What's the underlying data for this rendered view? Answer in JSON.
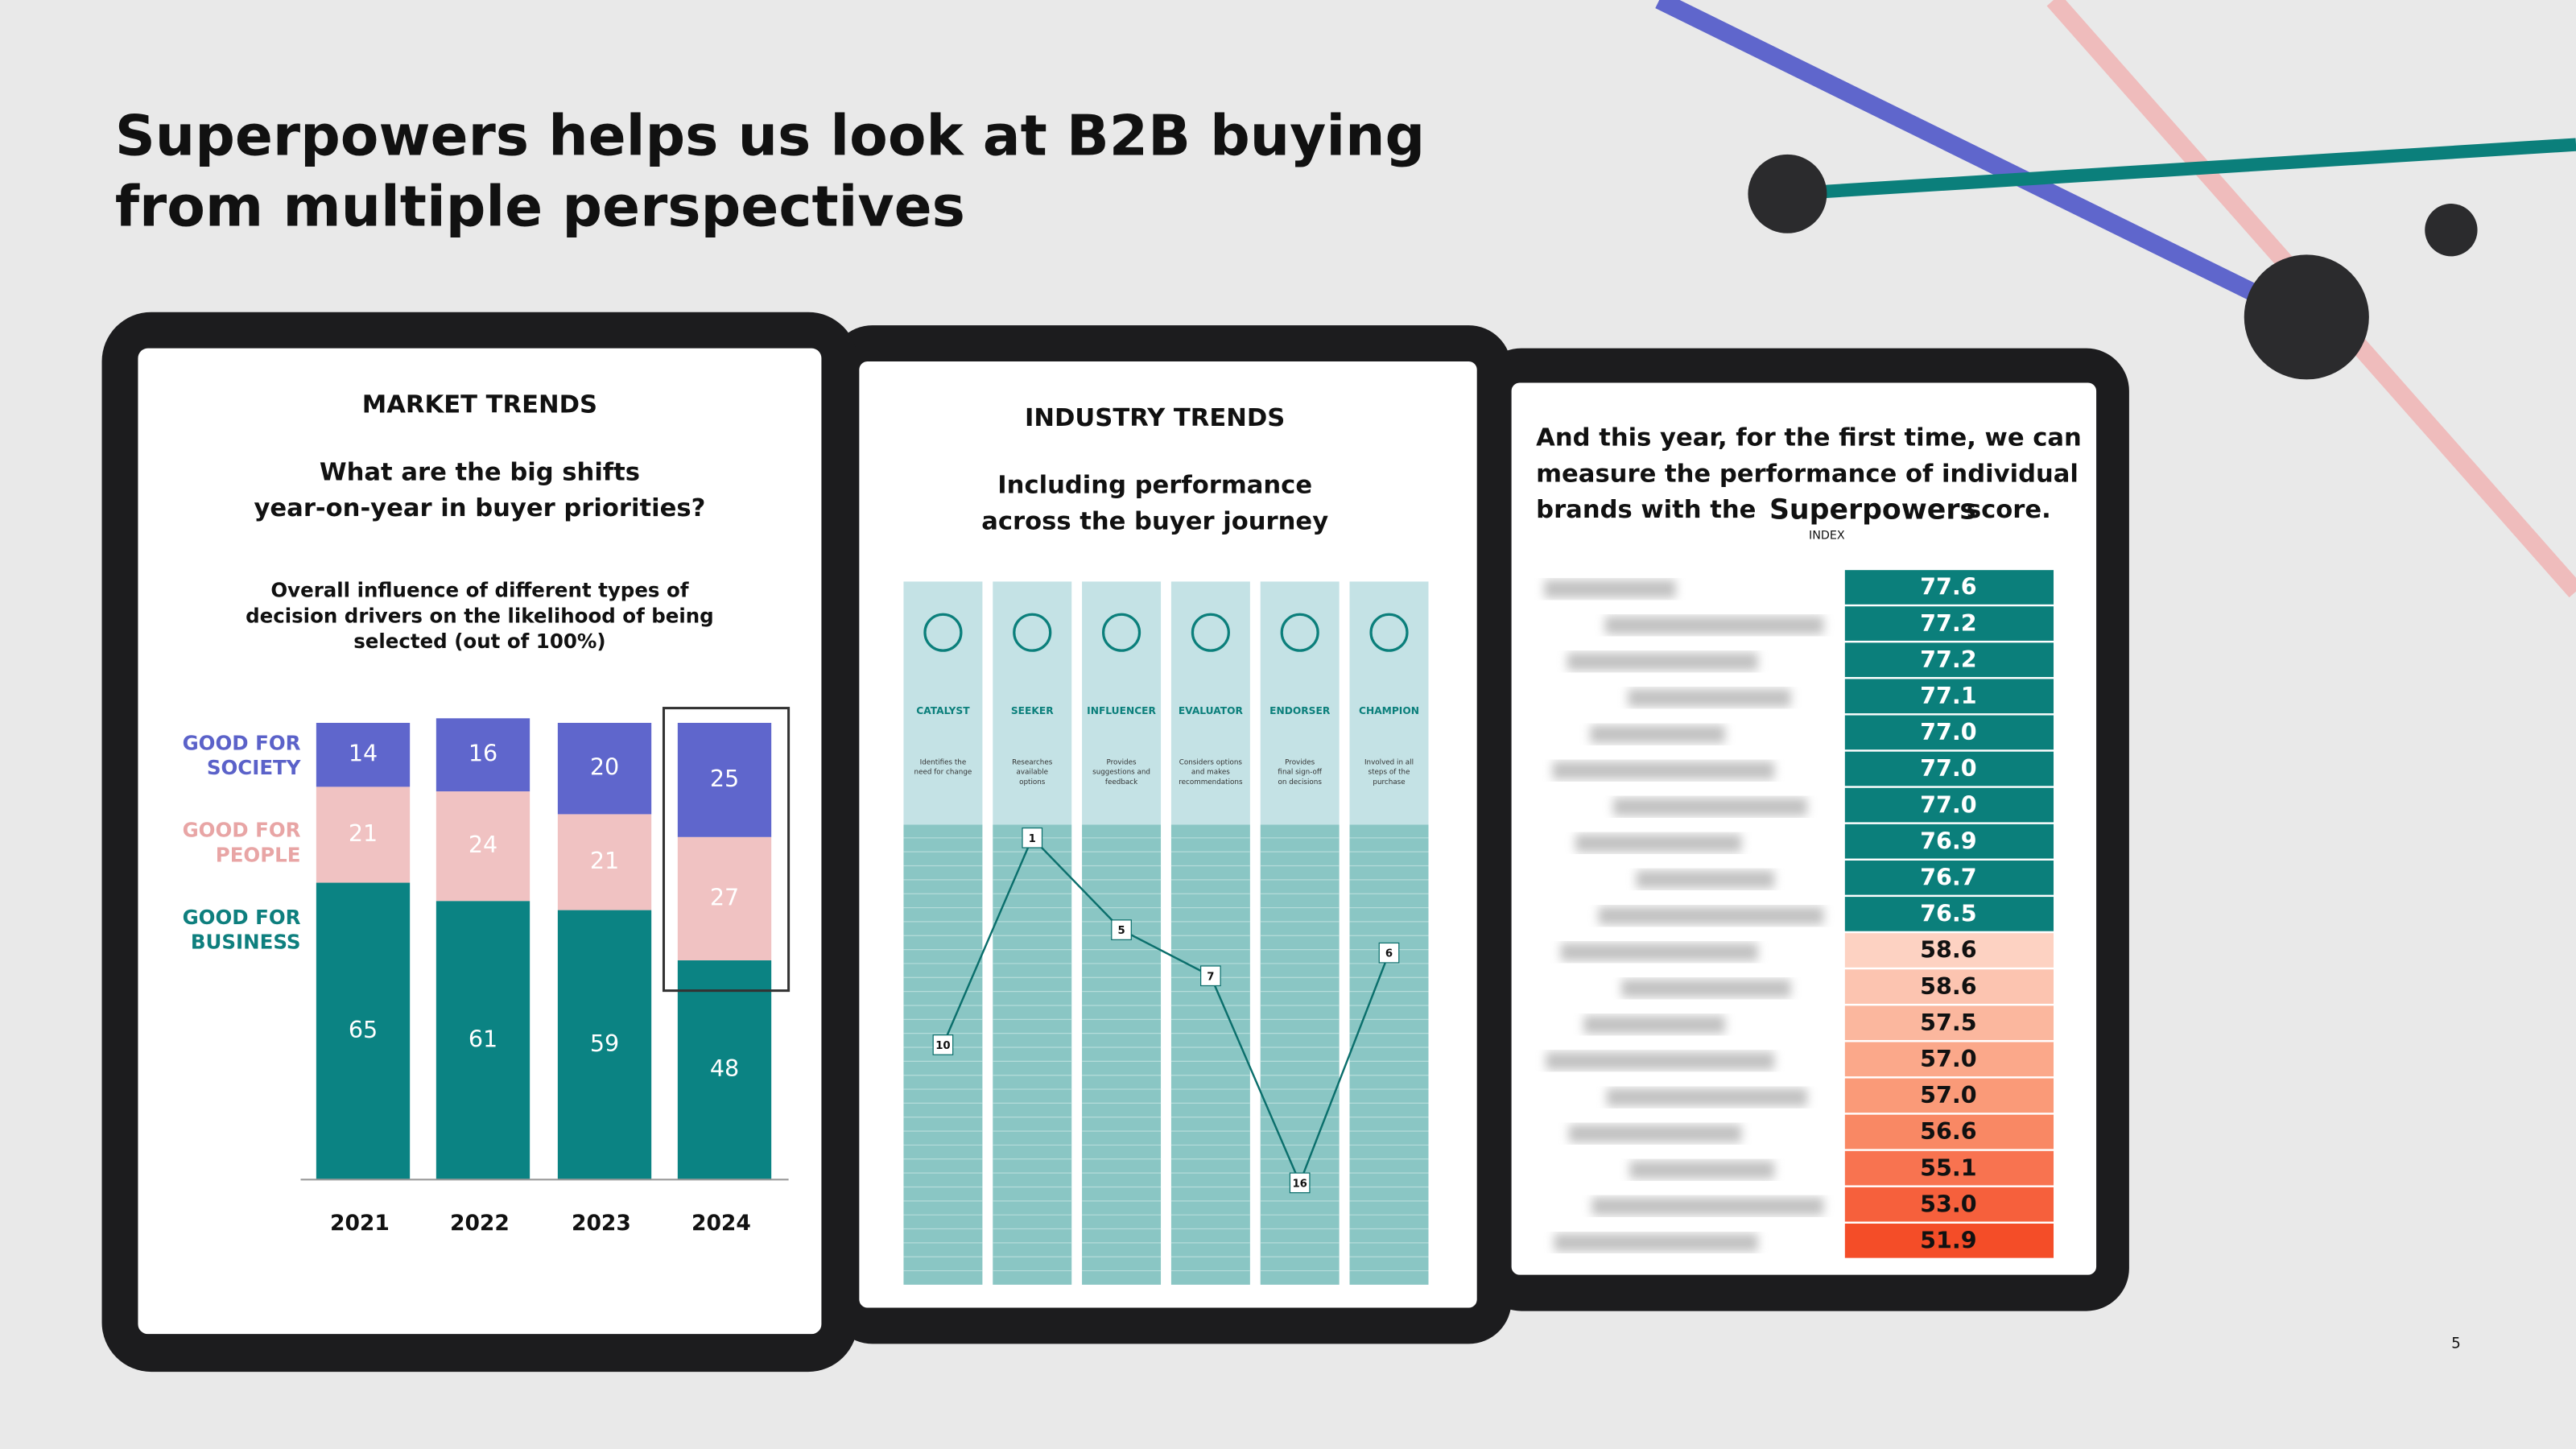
{
  "title_lines": [
    "Superpowers helps us look at B2B buying",
    "from multiple perspectives"
  ],
  "page_number": "5",
  "market_trends": {
    "heading": "MARKET TRENDS",
    "question_lines": [
      "What are the big shifts",
      "year-on-year in buyer priorities?"
    ],
    "chart_title_lines": [
      "Overall influence of different types of",
      "decision drivers on the likelihood of being",
      "selected (out of 100%)"
    ],
    "categories": [
      "2021",
      "2022",
      "2023",
      "2024"
    ],
    "ylim": [
      0,
      100
    ],
    "series": [
      {
        "name_lines": [
          "GOOD FOR",
          "BUSINESS"
        ],
        "color": "#0b8383",
        "label_color": "#0e7f7e",
        "values": [
          65,
          61,
          59,
          48
        ]
      },
      {
        "name_lines": [
          "GOOD FOR",
          "PEOPLE"
        ],
        "color": "#f0c2c2",
        "label_color": "#e8a5a5",
        "values": [
          21,
          24,
          21,
          27
        ]
      },
      {
        "name_lines": [
          "GOOD FOR",
          "SOCIETY"
        ],
        "color": "#5f66cc",
        "label_color": "#5b62c9",
        "values": [
          14,
          16,
          20,
          25
        ]
      }
    ]
  },
  "industry_trends": {
    "heading": "INDUSTRY TRENDS",
    "subtitle_lines": [
      "Including performance",
      "across the buyer journey"
    ],
    "ylim": [
      0,
      20
    ],
    "columns": [
      {
        "label": "CATALYST",
        "description_lines": [
          "Identifies the",
          "need for change"
        ]
      },
      {
        "label": "SEEKER",
        "description_lines": [
          "Researches",
          "available",
          "options"
        ]
      },
      {
        "label": "INFLUENCER",
        "description_lines": [
          "Provides",
          "suggestions and",
          "feedback"
        ]
      },
      {
        "label": "EVALUATOR",
        "description_lines": [
          "Considers options",
          "and makes",
          "recommendations"
        ]
      },
      {
        "label": "ENDORSER",
        "description_lines": [
          "Provides",
          "final sign-off",
          "on decisions"
        ]
      },
      {
        "label": "CHAMPION",
        "description_lines": [
          "Involved in all",
          "steps of the",
          "purchase"
        ]
      }
    ],
    "values": [
      10,
      1,
      5,
      7,
      16,
      6
    ]
  },
  "brand_scores": {
    "intro_lines": [
      "And this year, for the first time, we can",
      "measure the performance of individual",
      "brands with the"
    ],
    "logo": "Superpowers",
    "logo_sub": "INDEX",
    "intro_end": "score.",
    "values": [
      77.6,
      77.2,
      77.2,
      77.1,
      77,
      77,
      77,
      76.9,
      76.7,
      76.5,
      58.6,
      58.6,
      57.5,
      57,
      57,
      56.6,
      55.1,
      53,
      51.9
    ],
    "value_labels": [
      "77.6",
      "77.2",
      "77.2",
      "77.1",
      "77.0",
      "77.0",
      "77.0",
      "76.9",
      "76.7",
      "76.5",
      "58.6",
      "58.6",
      "57.5",
      "57.0",
      "57.0",
      "56.6",
      "55.1",
      "53.0",
      "51.9"
    ],
    "colors": [
      "#0b7f7b",
      "#0b7f7b",
      "#0b7f7b",
      "#0b7f7b",
      "#0b7f7b",
      "#0b7f7b",
      "#0b7f7b",
      "#0b7f7b",
      "#0b7f7b",
      "#0b7f7b",
      "#fdd2c2",
      "#fcc4b0",
      "#fbb79e",
      "#fba88a",
      "#fa9a78",
      "#f98864",
      "#f87350",
      "#f6603c",
      "#f44d28"
    ]
  }
}
